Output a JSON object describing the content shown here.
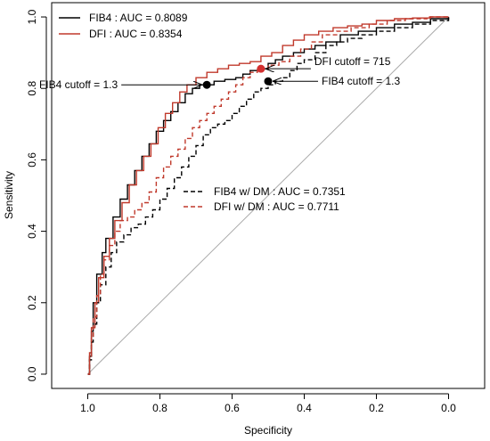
{
  "chart_data": {
    "type": "line",
    "xlabel": "Specificity",
    "ylabel": "Sensitivity",
    "xlim": [
      1.1,
      -0.1
    ],
    "ylim": [
      -0.04,
      1.04
    ],
    "x_reversed": true,
    "x_ticks": [
      1.0,
      0.8,
      0.6,
      0.4,
      0.2,
      0.0
    ],
    "y_ticks": [
      0.0,
      0.2,
      0.4,
      0.6,
      0.8,
      1.0
    ],
    "x_tick_labels": [
      "1.0",
      "0.8",
      "0.6",
      "0.4",
      "0.2",
      "0.0"
    ],
    "y_tick_labels": [
      "0.0",
      "0.2",
      "0.4",
      "0.6",
      "0.8",
      "1.0"
    ],
    "grid": false,
    "diagonal_reference": true,
    "legend_top": {
      "placement": "top-left",
      "entries": [
        {
          "series": 0,
          "label": "FIB4 :  AUC = 0.8089"
        },
        {
          "series": 1,
          "label": "DFI :    AUC = 0.8354"
        }
      ]
    },
    "legend_bottom": {
      "placement": "center-right",
      "entries": [
        {
          "series": 2,
          "label": "FIB4 w/ DM : AUC = 0.7351"
        },
        {
          "series": 3,
          "label": "DFI w/ DM :   AUC = 0.7711"
        }
      ]
    },
    "series": [
      {
        "name": "FIB4",
        "color": "#000000",
        "dash": "solid",
        "points": [
          [
            1.0,
            0.0
          ],
          [
            0.995,
            0.05
          ],
          [
            0.99,
            0.12
          ],
          [
            0.985,
            0.2
          ],
          [
            0.975,
            0.28
          ],
          [
            0.96,
            0.34
          ],
          [
            0.95,
            0.38
          ],
          [
            0.93,
            0.44
          ],
          [
            0.91,
            0.49
          ],
          [
            0.89,
            0.53
          ],
          [
            0.87,
            0.57
          ],
          [
            0.85,
            0.61
          ],
          [
            0.83,
            0.645
          ],
          [
            0.81,
            0.68
          ],
          [
            0.79,
            0.71
          ],
          [
            0.77,
            0.735
          ],
          [
            0.75,
            0.76
          ],
          [
            0.73,
            0.785
          ],
          [
            0.71,
            0.8
          ],
          [
            0.69,
            0.81
          ],
          [
            0.67,
            0.81
          ],
          [
            0.65,
            0.82
          ],
          [
            0.62,
            0.825
          ],
          [
            0.59,
            0.83
          ],
          [
            0.57,
            0.84
          ],
          [
            0.55,
            0.85
          ],
          [
            0.52,
            0.855
          ],
          [
            0.5,
            0.87
          ],
          [
            0.48,
            0.88
          ],
          [
            0.46,
            0.89
          ],
          [
            0.43,
            0.9
          ],
          [
            0.4,
            0.91
          ],
          [
            0.37,
            0.92
          ],
          [
            0.34,
            0.93
          ],
          [
            0.3,
            0.95
          ],
          [
            0.25,
            0.96
          ],
          [
            0.2,
            0.97
          ],
          [
            0.15,
            0.98
          ],
          [
            0.1,
            0.985
          ],
          [
            0.05,
            0.995
          ],
          [
            0.0,
            1.0
          ]
        ]
      },
      {
        "name": "DFI",
        "color": "#c0392b",
        "dash": "solid",
        "points": [
          [
            1.0,
            0.0
          ],
          [
            0.995,
            0.06
          ],
          [
            0.99,
            0.13
          ],
          [
            0.98,
            0.2
          ],
          [
            0.97,
            0.27
          ],
          [
            0.955,
            0.33
          ],
          [
            0.94,
            0.38
          ],
          [
            0.925,
            0.43
          ],
          [
            0.905,
            0.48
          ],
          [
            0.885,
            0.53
          ],
          [
            0.865,
            0.57
          ],
          [
            0.845,
            0.61
          ],
          [
            0.825,
            0.645
          ],
          [
            0.805,
            0.69
          ],
          [
            0.785,
            0.73
          ],
          [
            0.765,
            0.76
          ],
          [
            0.745,
            0.79
          ],
          [
            0.725,
            0.81
          ],
          [
            0.7,
            0.83
          ],
          [
            0.67,
            0.845
          ],
          [
            0.64,
            0.855
          ],
          [
            0.61,
            0.865
          ],
          [
            0.58,
            0.87
          ],
          [
            0.55,
            0.875
          ],
          [
            0.52,
            0.89
          ],
          [
            0.49,
            0.9
          ],
          [
            0.46,
            0.92
          ],
          [
            0.43,
            0.935
          ],
          [
            0.4,
            0.95
          ],
          [
            0.36,
            0.96
          ],
          [
            0.32,
            0.97
          ],
          [
            0.28,
            0.975
          ],
          [
            0.24,
            0.98
          ],
          [
            0.2,
            0.99
          ],
          [
            0.15,
            0.995
          ],
          [
            0.1,
            0.997
          ],
          [
            0.05,
            1.0
          ],
          [
            0.0,
            1.0
          ]
        ]
      },
      {
        "name": "FIB4 w/ DM",
        "color": "#000000",
        "dash": "dashed",
        "points": [
          [
            1.0,
            0.0
          ],
          [
            0.995,
            0.04
          ],
          [
            0.99,
            0.09
          ],
          [
            0.985,
            0.14
          ],
          [
            0.975,
            0.2
          ],
          [
            0.965,
            0.25
          ],
          [
            0.95,
            0.3
          ],
          [
            0.935,
            0.34
          ],
          [
            0.92,
            0.37
          ],
          [
            0.9,
            0.39
          ],
          [
            0.88,
            0.41
          ],
          [
            0.86,
            0.42
          ],
          [
            0.84,
            0.44
          ],
          [
            0.82,
            0.46
          ],
          [
            0.8,
            0.49
          ],
          [
            0.78,
            0.52
          ],
          [
            0.76,
            0.55
          ],
          [
            0.74,
            0.58
          ],
          [
            0.72,
            0.61
          ],
          [
            0.7,
            0.64
          ],
          [
            0.68,
            0.67
          ],
          [
            0.66,
            0.69
          ],
          [
            0.64,
            0.7
          ],
          [
            0.62,
            0.71
          ],
          [
            0.6,
            0.73
          ],
          [
            0.58,
            0.75
          ],
          [
            0.56,
            0.77
          ],
          [
            0.54,
            0.79
          ],
          [
            0.52,
            0.8
          ],
          [
            0.5,
            0.81
          ],
          [
            0.48,
            0.82
          ],
          [
            0.46,
            0.83
          ],
          [
            0.44,
            0.85
          ],
          [
            0.42,
            0.87
          ],
          [
            0.4,
            0.88
          ],
          [
            0.37,
            0.9
          ],
          [
            0.34,
            0.92
          ],
          [
            0.31,
            0.93
          ],
          [
            0.28,
            0.94
          ],
          [
            0.24,
            0.95
          ],
          [
            0.2,
            0.96
          ],
          [
            0.15,
            0.97
          ],
          [
            0.1,
            0.98
          ],
          [
            0.05,
            0.99
          ],
          [
            0.0,
            1.0
          ]
        ]
      },
      {
        "name": "DFI w/ DM",
        "color": "#c0392b",
        "dash": "dashed",
        "points": [
          [
            1.0,
            0.0
          ],
          [
            0.995,
            0.05
          ],
          [
            0.99,
            0.1
          ],
          [
            0.985,
            0.16
          ],
          [
            0.975,
            0.22
          ],
          [
            0.965,
            0.28
          ],
          [
            0.955,
            0.32
          ],
          [
            0.94,
            0.36
          ],
          [
            0.925,
            0.4
          ],
          [
            0.91,
            0.43
          ],
          [
            0.89,
            0.44
          ],
          [
            0.87,
            0.46
          ],
          [
            0.85,
            0.48
          ],
          [
            0.83,
            0.51
          ],
          [
            0.81,
            0.55
          ],
          [
            0.79,
            0.58
          ],
          [
            0.77,
            0.61
          ],
          [
            0.75,
            0.63
          ],
          [
            0.73,
            0.66
          ],
          [
            0.71,
            0.69
          ],
          [
            0.69,
            0.71
          ],
          [
            0.67,
            0.73
          ],
          [
            0.65,
            0.75
          ],
          [
            0.63,
            0.77
          ],
          [
            0.61,
            0.79
          ],
          [
            0.59,
            0.81
          ],
          [
            0.57,
            0.83
          ],
          [
            0.55,
            0.845
          ],
          [
            0.53,
            0.855
          ],
          [
            0.5,
            0.865
          ],
          [
            0.47,
            0.875
          ],
          [
            0.44,
            0.89
          ],
          [
            0.41,
            0.91
          ],
          [
            0.38,
            0.93
          ],
          [
            0.35,
            0.95
          ],
          [
            0.31,
            0.96
          ],
          [
            0.27,
            0.97
          ],
          [
            0.22,
            0.98
          ],
          [
            0.17,
            0.99
          ],
          [
            0.12,
            0.995
          ],
          [
            0.06,
            1.0
          ],
          [
            0.0,
            1.0
          ]
        ]
      }
    ],
    "cutoff_points": [
      {
        "label": "FIB4 cutoff = 1.3",
        "x": 0.67,
        "y": 0.81,
        "color": "#000000",
        "arrow_from": "left"
      },
      {
        "label": "DFI cutoff = 715",
        "x": 0.52,
        "y": 0.855,
        "color": "#d32f2f",
        "arrow_from": "right"
      },
      {
        "label": "FIB4 cutoff = 1.3",
        "x": 0.5,
        "y": 0.82,
        "color": "#000000",
        "arrow_from": "right"
      }
    ]
  }
}
